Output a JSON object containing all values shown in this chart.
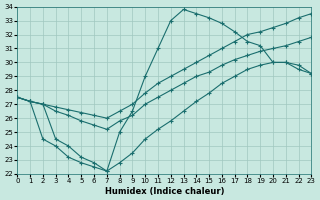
{
  "xlabel": "Humidex (Indice chaleur)",
  "xlim": [
    0,
    23
  ],
  "ylim": [
    22,
    34
  ],
  "yticks": [
    22,
    23,
    24,
    25,
    26,
    27,
    28,
    29,
    30,
    31,
    32,
    33,
    34
  ],
  "xticks": [
    0,
    1,
    2,
    3,
    4,
    5,
    6,
    7,
    8,
    9,
    10,
    11,
    12,
    13,
    14,
    15,
    16,
    17,
    18,
    19,
    20,
    21,
    22,
    23
  ],
  "bg_color": "#c8e8e0",
  "grid_color": "#a0c8c0",
  "line_color": "#1a6e6e",
  "line1_x": [
    0,
    1,
    2,
    3,
    4,
    5,
    6,
    7,
    8,
    9,
    10,
    11,
    12,
    13,
    14,
    15,
    16,
    17,
    18,
    19,
    20,
    21,
    22,
    23
  ],
  "line1_y": [
    27.5,
    27.2,
    27.0,
    26.8,
    26.6,
    26.4,
    26.2,
    26.0,
    26.5,
    27.0,
    27.8,
    28.5,
    29.0,
    29.5,
    30.0,
    30.5,
    31.0,
    31.5,
    32.0,
    32.2,
    32.5,
    32.8,
    33.2,
    33.5
  ],
  "line2_x": [
    0,
    1,
    2,
    3,
    4,
    5,
    6,
    7,
    8,
    9,
    10,
    11,
    12,
    13,
    14,
    15,
    16,
    17,
    18,
    19,
    20,
    21,
    22,
    23
  ],
  "line2_y": [
    27.5,
    27.2,
    27.0,
    26.5,
    26.2,
    25.8,
    25.5,
    25.2,
    25.8,
    26.2,
    27.0,
    27.5,
    28.0,
    28.5,
    29.0,
    29.3,
    29.8,
    30.2,
    30.5,
    30.8,
    31.0,
    31.2,
    31.5,
    31.8
  ],
  "line3_x": [
    0,
    1,
    2,
    3,
    4,
    5,
    6,
    7,
    8,
    9,
    10,
    11,
    12,
    13,
    14,
    15,
    16,
    17,
    18,
    19,
    20,
    21,
    22,
    23
  ],
  "line3_y": [
    27.5,
    27.2,
    24.5,
    24.0,
    23.2,
    22.8,
    22.5,
    22.2,
    22.8,
    23.5,
    24.5,
    25.2,
    25.8,
    26.5,
    27.2,
    27.8,
    28.5,
    29.0,
    29.5,
    29.8,
    30.0,
    30.0,
    29.8,
    29.2
  ],
  "line4_x": [
    0,
    1,
    2,
    3,
    4,
    5,
    6,
    7,
    8,
    9,
    10,
    11,
    12,
    13,
    14,
    15,
    16,
    17,
    18,
    19,
    20,
    21,
    22,
    23
  ],
  "line4_y": [
    27.5,
    27.2,
    27.0,
    24.5,
    24.0,
    23.2,
    22.8,
    22.2,
    25.0,
    26.5,
    29.0,
    31.0,
    33.0,
    33.8,
    33.5,
    33.2,
    32.8,
    32.2,
    31.5,
    31.2,
    30.0,
    30.0,
    29.5,
    29.2
  ]
}
